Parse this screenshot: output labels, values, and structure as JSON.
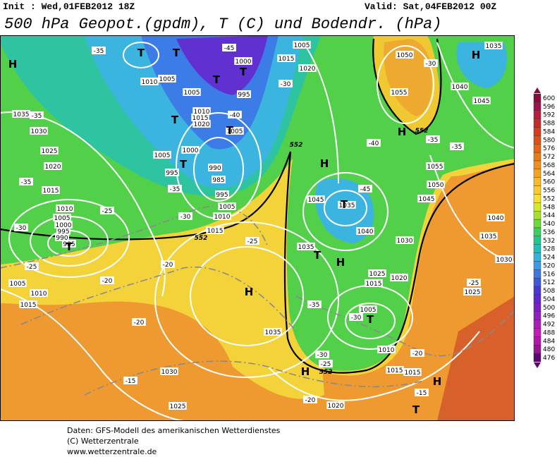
{
  "header": {
    "init": "Init : Wed,01FEB2012 18Z",
    "valid": "Valid: Sat,04FEB2012 00Z",
    "title": "500 hPa Geopot.(gpdm), T (C) und Bodendr. (hPa)"
  },
  "legend": {
    "labels": [
      600,
      596,
      592,
      588,
      584,
      580,
      576,
      572,
      568,
      564,
      560,
      556,
      552,
      548,
      544,
      540,
      536,
      532,
      528,
      524,
      520,
      516,
      512,
      508,
      504,
      500,
      496,
      492,
      488,
      484,
      480,
      476
    ],
    "colors": [
      "#8b0a3c",
      "#a0104a",
      "#b81d3d",
      "#c8282a",
      "#d83a20",
      "#e04e1a",
      "#e86414",
      "#ec7a14",
      "#f08e1c",
      "#f4a424",
      "#f6b82c",
      "#f8cc30",
      "#f8e030",
      "#d4e82c",
      "#a8e030",
      "#6cd83c",
      "#38d060",
      "#20c890",
      "#20c0b8",
      "#30b4e0",
      "#3c98e8",
      "#3c78e4",
      "#3c58dc",
      "#4838d4",
      "#6028cc",
      "#7820c4",
      "#9020bc",
      "#a820b4",
      "#c020b0",
      "#b018a8",
      "#901890",
      "#5a0a6c"
    ]
  },
  "map": {
    "pressure_labels": [
      "1035",
      "1030",
      "1025",
      "1020",
      "1015",
      "1010",
      "1005",
      "1000",
      "995",
      "990",
      "985",
      "1005",
      "1010",
      "1015",
      "1030",
      "1025",
      "1020",
      "1035",
      "1035",
      "1045",
      "1035",
      "1040",
      "1030",
      "1025",
      "1020",
      "1015",
      "1005",
      "1010",
      "1015",
      "1015",
      "1050",
      "1055",
      "1040",
      "1045",
      "1055",
      "1050",
      "1045",
      "1040",
      "1035",
      "1030",
      "1025",
      "1035",
      "1000",
      "995",
      "1005",
      "1010",
      "1015",
      "1020",
      "1005",
      "1005",
      "1000",
      "995",
      "990",
      "985",
      "995",
      "1005",
      "1010",
      "1015",
      "1010",
      "1005",
      "1015",
      "1020",
      "1005"
    ],
    "temperature_labels": [
      "-35",
      "-35",
      "-35",
      "-35",
      "-30",
      "-30",
      "-30",
      "-30",
      "-25",
      "-25",
      "-25",
      "-20",
      "-20",
      "-20",
      "-20",
      "-15",
      "-15",
      "-40",
      "-40",
      "-45",
      "-45",
      "-35",
      "-35",
      "-35",
      "-30",
      "-30",
      "-25",
      "-25",
      "-20"
    ],
    "height_labels": [
      "552",
      "552",
      "552",
      "552"
    ],
    "centers": [
      "H",
      "H",
      "H",
      "H",
      "H",
      "H",
      "H",
      "H",
      "T",
      "T",
      "T",
      "T",
      "T",
      "T",
      "T",
      "T",
      "T",
      "T",
      "T",
      "T"
    ]
  },
  "footer": {
    "lines": [
      "Daten: GFS-Modell des amerikanischen Wetterdienstes",
      "(C) Wetterzentrale",
      "www.wetterzentrale.de"
    ]
  }
}
